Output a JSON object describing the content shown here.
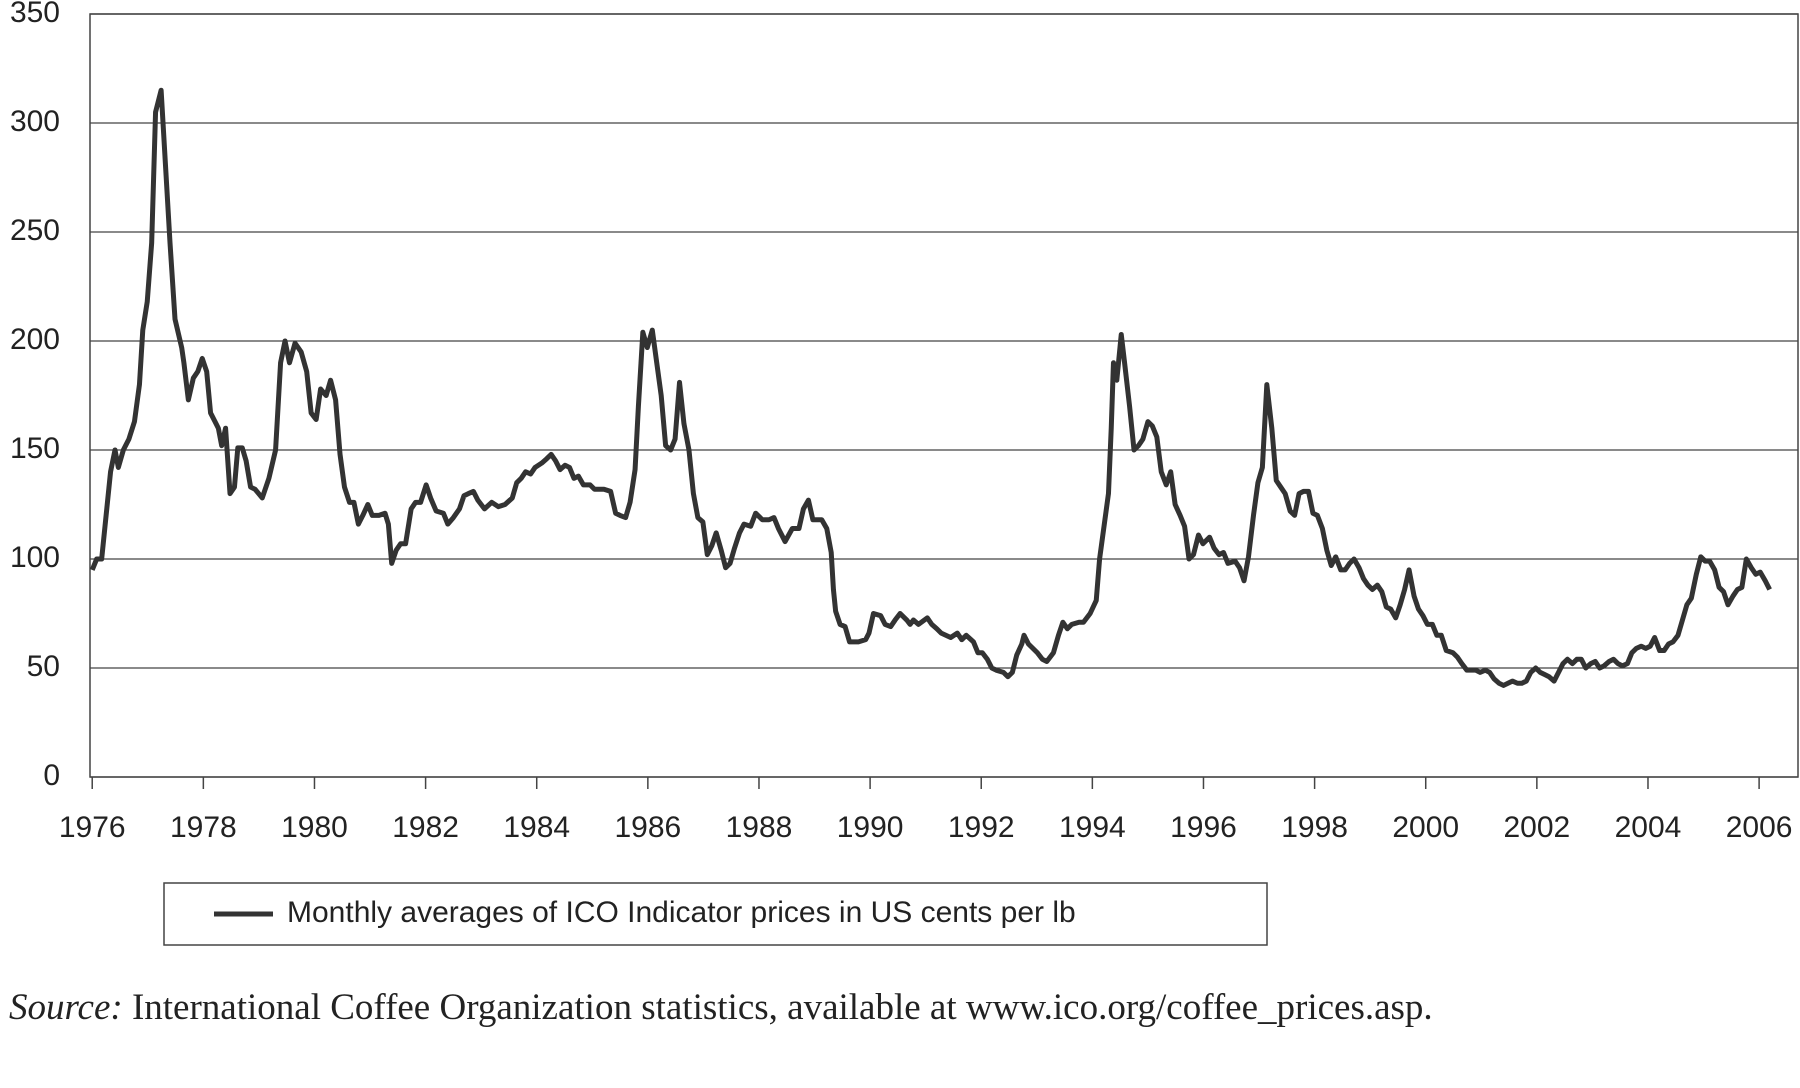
{
  "chart_data": {
    "type": "line",
    "xlim": [
      1975.96,
      2006.7
    ],
    "xticks": [
      1976,
      1978,
      1980,
      1982,
      1984,
      1986,
      1988,
      1990,
      1992,
      1994,
      1996,
      1998,
      2000,
      2002,
      2004,
      2006
    ],
    "ylim": [
      0,
      350
    ],
    "yticks": [
      0,
      50,
      100,
      150,
      200,
      250,
      300,
      350
    ],
    "grid": true,
    "x": [
      1976.0,
      1976.08,
      1976.17,
      1976.25,
      1976.33,
      1976.41,
      1976.47,
      1976.56,
      1976.66,
      1976.76,
      1976.85,
      1976.91,
      1976.99,
      1977.07,
      1977.14,
      1977.24,
      1977.32,
      1977.4,
      1977.49,
      1977.61,
      1977.65,
      1977.73,
      1977.82,
      1977.9,
      1977.98,
      1978.06,
      1978.13,
      1978.21,
      1978.27,
      1978.33,
      1978.4,
      1978.48,
      1978.56,
      1978.62,
      1978.7,
      1978.77,
      1978.85,
      1978.93,
      1979.06,
      1979.18,
      1979.3,
      1979.39,
      1979.47,
      1979.55,
      1979.65,
      1979.76,
      1979.86,
      1979.94,
      1980.03,
      1980.11,
      1980.21,
      1980.29,
      1980.38,
      1980.46,
      1980.54,
      1980.63,
      1980.71,
      1980.79,
      1980.87,
      1980.96,
      1981.04,
      1981.16,
      1981.27,
      1981.33,
      1981.39,
      1981.47,
      1981.55,
      1981.64,
      1981.74,
      1981.82,
      1981.91,
      1982.01,
      1982.09,
      1982.19,
      1982.32,
      1982.4,
      1982.5,
      1982.61,
      1982.69,
      1982.77,
      1982.86,
      1982.94,
      1983.06,
      1983.19,
      1983.31,
      1983.43,
      1983.56,
      1983.64,
      1983.72,
      1983.8,
      1983.89,
      1983.97,
      1984.09,
      1984.18,
      1984.26,
      1984.34,
      1984.42,
      1984.51,
      1984.59,
      1984.67,
      1984.75,
      1984.84,
      1984.96,
      1985.04,
      1985.21,
      1985.33,
      1985.42,
      1985.5,
      1985.6,
      1985.68,
      1985.77,
      1985.83,
      1985.91,
      1985.99,
      1986.08,
      1986.16,
      1986.24,
      1986.32,
      1986.41,
      1986.49,
      1986.57,
      1986.65,
      1986.74,
      1986.82,
      1986.9,
      1986.99,
      1987.07,
      1987.15,
      1987.23,
      1987.32,
      1987.4,
      1987.48,
      1987.56,
      1987.65,
      1987.73,
      1987.85,
      1987.94,
      1988.06,
      1988.18,
      1988.27,
      1988.35,
      1988.47,
      1988.6,
      1988.72,
      1988.8,
      1988.89,
      1988.97,
      1989.13,
      1989.22,
      1989.3,
      1989.34,
      1989.38,
      1989.46,
      1989.55,
      1989.63,
      1989.79,
      1989.92,
      1989.98,
      1990.06,
      1990.19,
      1990.27,
      1990.37,
      1990.45,
      1990.54,
      1990.66,
      1990.72,
      1990.78,
      1990.87,
      1991.03,
      1991.11,
      1991.2,
      1991.28,
      1991.45,
      1991.57,
      1991.65,
      1991.73,
      1991.86,
      1991.94,
      1992.02,
      1992.11,
      1992.19,
      1992.27,
      1992.4,
      1992.48,
      1992.56,
      1992.64,
      1992.73,
      1992.77,
      1992.85,
      1993.01,
      1993.1,
      1993.18,
      1993.3,
      1993.39,
      1993.47,
      1993.55,
      1993.63,
      1993.76,
      1993.84,
      1993.96,
      1994.07,
      1994.13,
      1994.21,
      1994.29,
      1994.34,
      1994.38,
      1994.44,
      1994.52,
      1994.58,
      1994.67,
      1994.75,
      1994.83,
      1994.91,
      1995.0,
      1995.08,
      1995.16,
      1995.24,
      1995.33,
      1995.41,
      1995.49,
      1995.58,
      1995.66,
      1995.74,
      1995.82,
      1995.91,
      1995.99,
      1996.11,
      1996.19,
      1996.28,
      1996.36,
      1996.44,
      1996.57,
      1996.65,
      1996.73,
      1996.81,
      1996.9,
      1996.98,
      1997.06,
      1997.14,
      1997.23,
      1997.31,
      1997.39,
      1997.47,
      1997.56,
      1997.64,
      1997.72,
      1997.8,
      1997.89,
      1997.97,
      1998.05,
      1998.14,
      1998.22,
      1998.3,
      1998.38,
      1998.47,
      1998.55,
      1998.63,
      1998.71,
      1998.8,
      1998.88,
      1998.96,
      1999.04,
      1999.13,
      1999.21,
      1999.29,
      1999.37,
      1999.46,
      1999.54,
      1999.62,
      1999.7,
      1999.79,
      1999.87,
      1999.95,
      2000.03,
      2000.12,
      2000.2,
      2000.28,
      2000.37,
      2000.49,
      2000.57,
      2000.65,
      2000.74,
      2000.82,
      2000.9,
      2000.98,
      2001.07,
      2001.15,
      2001.23,
      2001.32,
      2001.4,
      2001.48,
      2001.56,
      2001.65,
      2001.73,
      2001.81,
      2001.89,
      2001.98,
      2002.06,
      2002.14,
      2002.22,
      2002.31,
      2002.39,
      2002.47,
      2002.55,
      2002.64,
      2002.72,
      2002.8,
      2002.88,
      2002.97,
      2003.05,
      2003.13,
      2003.21,
      2003.3,
      2003.38,
      2003.46,
      2003.54,
      2003.63,
      2003.71,
      2003.79,
      2003.88,
      2003.96,
      2004.04,
      2004.12,
      2004.21,
      2004.29,
      2004.37,
      2004.45,
      2004.54,
      2004.62,
      2004.7,
      2004.78,
      2004.87,
      2004.95,
      2005.03,
      2005.11,
      2005.2,
      2005.28,
      2005.36,
      2005.44,
      2005.53,
      2005.61,
      2005.69,
      2005.77,
      2005.86,
      2005.94,
      2006.02,
      2006.11,
      2006.19
    ],
    "series": [
      {
        "name": "Monthly averages of ICO Indicator prices in US cents per lb",
        "color": "#333333",
        "values": [
          95,
          100,
          100,
          120,
          140,
          150,
          142,
          150,
          155,
          163,
          180,
          205,
          218,
          245,
          305,
          315,
          280,
          245,
          210,
          197,
          190,
          173,
          183,
          186,
          192,
          186,
          167,
          163,
          160,
          152,
          160,
          130,
          133,
          151,
          151,
          145,
          133,
          132,
          128,
          137,
          150,
          190,
          200,
          190,
          199,
          195,
          186,
          167,
          164,
          178,
          175,
          182,
          173,
          148,
          133,
          126,
          126,
          116,
          120,
          125,
          120,
          120,
          121,
          116,
          98,
          104,
          107,
          107,
          123,
          126,
          126,
          134,
          128,
          122,
          121,
          116,
          119,
          123,
          129,
          130,
          131,
          127,
          123,
          126,
          124,
          125,
          128,
          135,
          137,
          140,
          139,
          142,
          144,
          146,
          148,
          145,
          141,
          143,
          142,
          137,
          138,
          134,
          134,
          132,
          132,
          131,
          121,
          120,
          119,
          126,
          141,
          170,
          204,
          197,
          205,
          190,
          175,
          152,
          150,
          155,
          181,
          162,
          150,
          130,
          119,
          117,
          102,
          106,
          112,
          104,
          96,
          98,
          105,
          112,
          116,
          115,
          121,
          118,
          118,
          119,
          114,
          108,
          114,
          114,
          123,
          127,
          118,
          118,
          114,
          103,
          86,
          76,
          70,
          69,
          62,
          62,
          63,
          66,
          75,
          74,
          70,
          69,
          72,
          75,
          72,
          70,
          72,
          70,
          73,
          70,
          68,
          66,
          64,
          66,
          63,
          65,
          62,
          57,
          57,
          54,
          50,
          49,
          48,
          46,
          48,
          56,
          61,
          65,
          61,
          57,
          54,
          53,
          57,
          65,
          71,
          68,
          70,
          71,
          71,
          75,
          81,
          100,
          115,
          130,
          160,
          190,
          182,
          203,
          190,
          170,
          150,
          152,
          155,
          163,
          161,
          156,
          140,
          134,
          140,
          125,
          120,
          115,
          100,
          102,
          111,
          107,
          110,
          105,
          102,
          103,
          98,
          99,
          96,
          90,
          101,
          120,
          135,
          142,
          180,
          160,
          136,
          133,
          130,
          122,
          120,
          130,
          131,
          131,
          121,
          120,
          114,
          104,
          97,
          101,
          95,
          95,
          98,
          100,
          96,
          91,
          88,
          86,
          88,
          85,
          78,
          77,
          73,
          79,
          86,
          95,
          83,
          77,
          74,
          70,
          70,
          65,
          65,
          58,
          57,
          55,
          52,
          49,
          49,
          49,
          48,
          49,
          48,
          45,
          43,
          42,
          43,
          44,
          43,
          43,
          44,
          48,
          50,
          48,
          47,
          46,
          44,
          48,
          52,
          54,
          52,
          54,
          54,
          50,
          52,
          53,
          50,
          51,
          53,
          54,
          52,
          51,
          52,
          57,
          59,
          60,
          59,
          60,
          64,
          58,
          58,
          61,
          62,
          65,
          72,
          79,
          82,
          93,
          101,
          99,
          99,
          95,
          87,
          85,
          79,
          83,
          86,
          87,
          100,
          96,
          93,
          94,
          90,
          86
        ]
      }
    ]
  },
  "source_label": "Source:",
  "source_text": "International Coffee Organization statistics, available at www.ico.org/coffee_prices.asp."
}
